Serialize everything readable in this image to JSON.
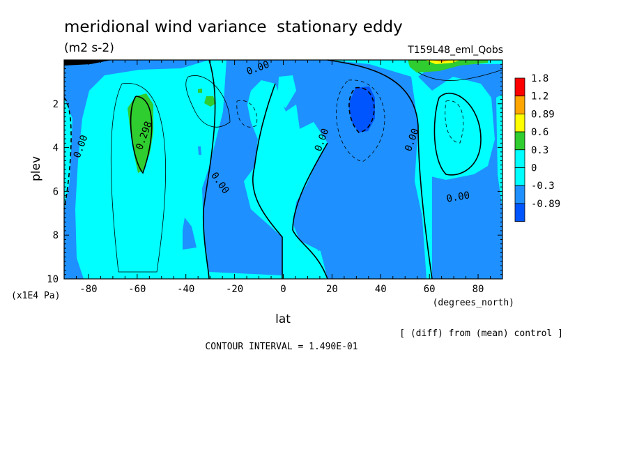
{
  "chart_data": {
    "type": "heatmap",
    "title": "meridional wind variance  stationary eddy",
    "units": "(m2 s-2)",
    "run_label": "T159L48_eml_Qobs",
    "xlabel": "lat",
    "xunits": "(degrees_north)",
    "ylabel": "plev",
    "yunits": "(x1E4 Pa)",
    "xlim": [
      -90,
      90
    ],
    "ylim": [
      0,
      10
    ],
    "y_inverted": true,
    "x_ticks": [
      -80,
      -60,
      -40,
      -20,
      0,
      20,
      40,
      60,
      80
    ],
    "x_tick_labels": [
      "-80",
      "-60",
      "-40",
      "-20",
      "0",
      "20",
      "40",
      "60",
      "80"
    ],
    "y_ticks": [
      2,
      4,
      6,
      8,
      10
    ],
    "y_tick_labels": [
      "2",
      "4",
      "6",
      "8",
      "10"
    ],
    "legend_levels": [
      "1.8",
      "1.2",
      "0.89",
      "0.6",
      "0.3",
      "0",
      "-0.3",
      "-0.89"
    ],
    "legend_colors": [
      "#ff0000",
      "#ffa500",
      "#ffff00",
      "#2fcd2f",
      "#00ffff",
      "#00ffff",
      "#1e90ff",
      "#0055ff"
    ],
    "contour_labels": [
      "0.00",
      "0.298",
      "0.00",
      "0.00",
      "0.00",
      "0.00",
      "0.00"
    ],
    "contour_label_pos": [
      [
        -82,
        4.0
      ],
      [
        -56,
        3.5
      ],
      [
        -27,
        5.7
      ],
      [
        -10,
        0.5
      ],
      [
        17,
        3.7
      ],
      [
        54,
        3.7
      ],
      [
        72,
        6.4
      ]
    ],
    "footer_diff": "[ (diff) from (mean) control ]",
    "footer_interval": "CONTOUR INTERVAL = 1.490E-01",
    "colors": {
      "dark_blue": "#0055ff",
      "mid_blue": "#1e90ff",
      "cyan": "#00ffff",
      "green": "#2fcd2f",
      "yellow": "#ffff00",
      "orange": "#ffa500",
      "red": "#ff0000"
    }
  }
}
